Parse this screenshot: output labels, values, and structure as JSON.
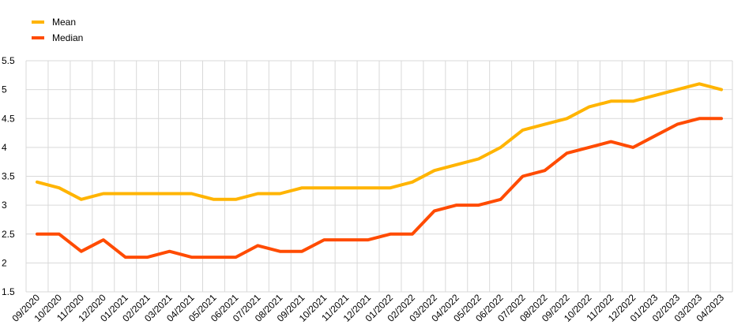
{
  "chart_data": {
    "type": "line",
    "categories": [
      "09/2020",
      "10/2020",
      "11/2020",
      "12/2020",
      "01/2021",
      "02/2021",
      "03/2021",
      "04/2021",
      "05/2021",
      "06/2021",
      "07/2021",
      "08/2021",
      "09/2021",
      "10/2021",
      "11/2021",
      "12/2021",
      "01/2022",
      "02/2022",
      "03/2022",
      "04/2022",
      "05/2022",
      "06/2022",
      "07/2022",
      "08/2022",
      "09/2022",
      "10/2022",
      "11/2022",
      "12/2022",
      "01/2023",
      "02/2023",
      "03/2023",
      "04/2023"
    ],
    "series": [
      {
        "name": "Mean",
        "color": "#FFB400",
        "values": [
          3.4,
          3.3,
          3.1,
          3.2,
          3.2,
          3.2,
          3.2,
          3.2,
          3.1,
          3.1,
          3.2,
          3.2,
          3.3,
          3.3,
          3.3,
          3.3,
          3.3,
          3.4,
          3.6,
          3.7,
          3.8,
          4.0,
          4.3,
          4.4,
          4.5,
          4.7,
          4.8,
          4.8,
          4.9,
          5.0,
          5.1,
          5.0
        ]
      },
      {
        "name": "Median",
        "color": "#FF4B00",
        "values": [
          2.5,
          2.5,
          2.2,
          2.4,
          2.1,
          2.1,
          2.2,
          2.1,
          2.1,
          2.1,
          2.3,
          2.2,
          2.2,
          2.4,
          2.4,
          2.4,
          2.5,
          2.5,
          2.9,
          3.0,
          3.0,
          3.1,
          3.5,
          3.6,
          3.9,
          4.0,
          4.1,
          4.0,
          4.2,
          4.4,
          4.5,
          4.5
        ]
      }
    ],
    "title": "",
    "xlabel": "",
    "ylabel": "",
    "ylim": [
      1.5,
      5.5
    ],
    "yticks": [
      "1.5",
      "2",
      "2.5",
      "3",
      "3.5",
      "4",
      "4.5",
      "5",
      "5.5"
    ],
    "grid": true,
    "legend": "top-left",
    "gridColor": "#d9d9d9"
  }
}
